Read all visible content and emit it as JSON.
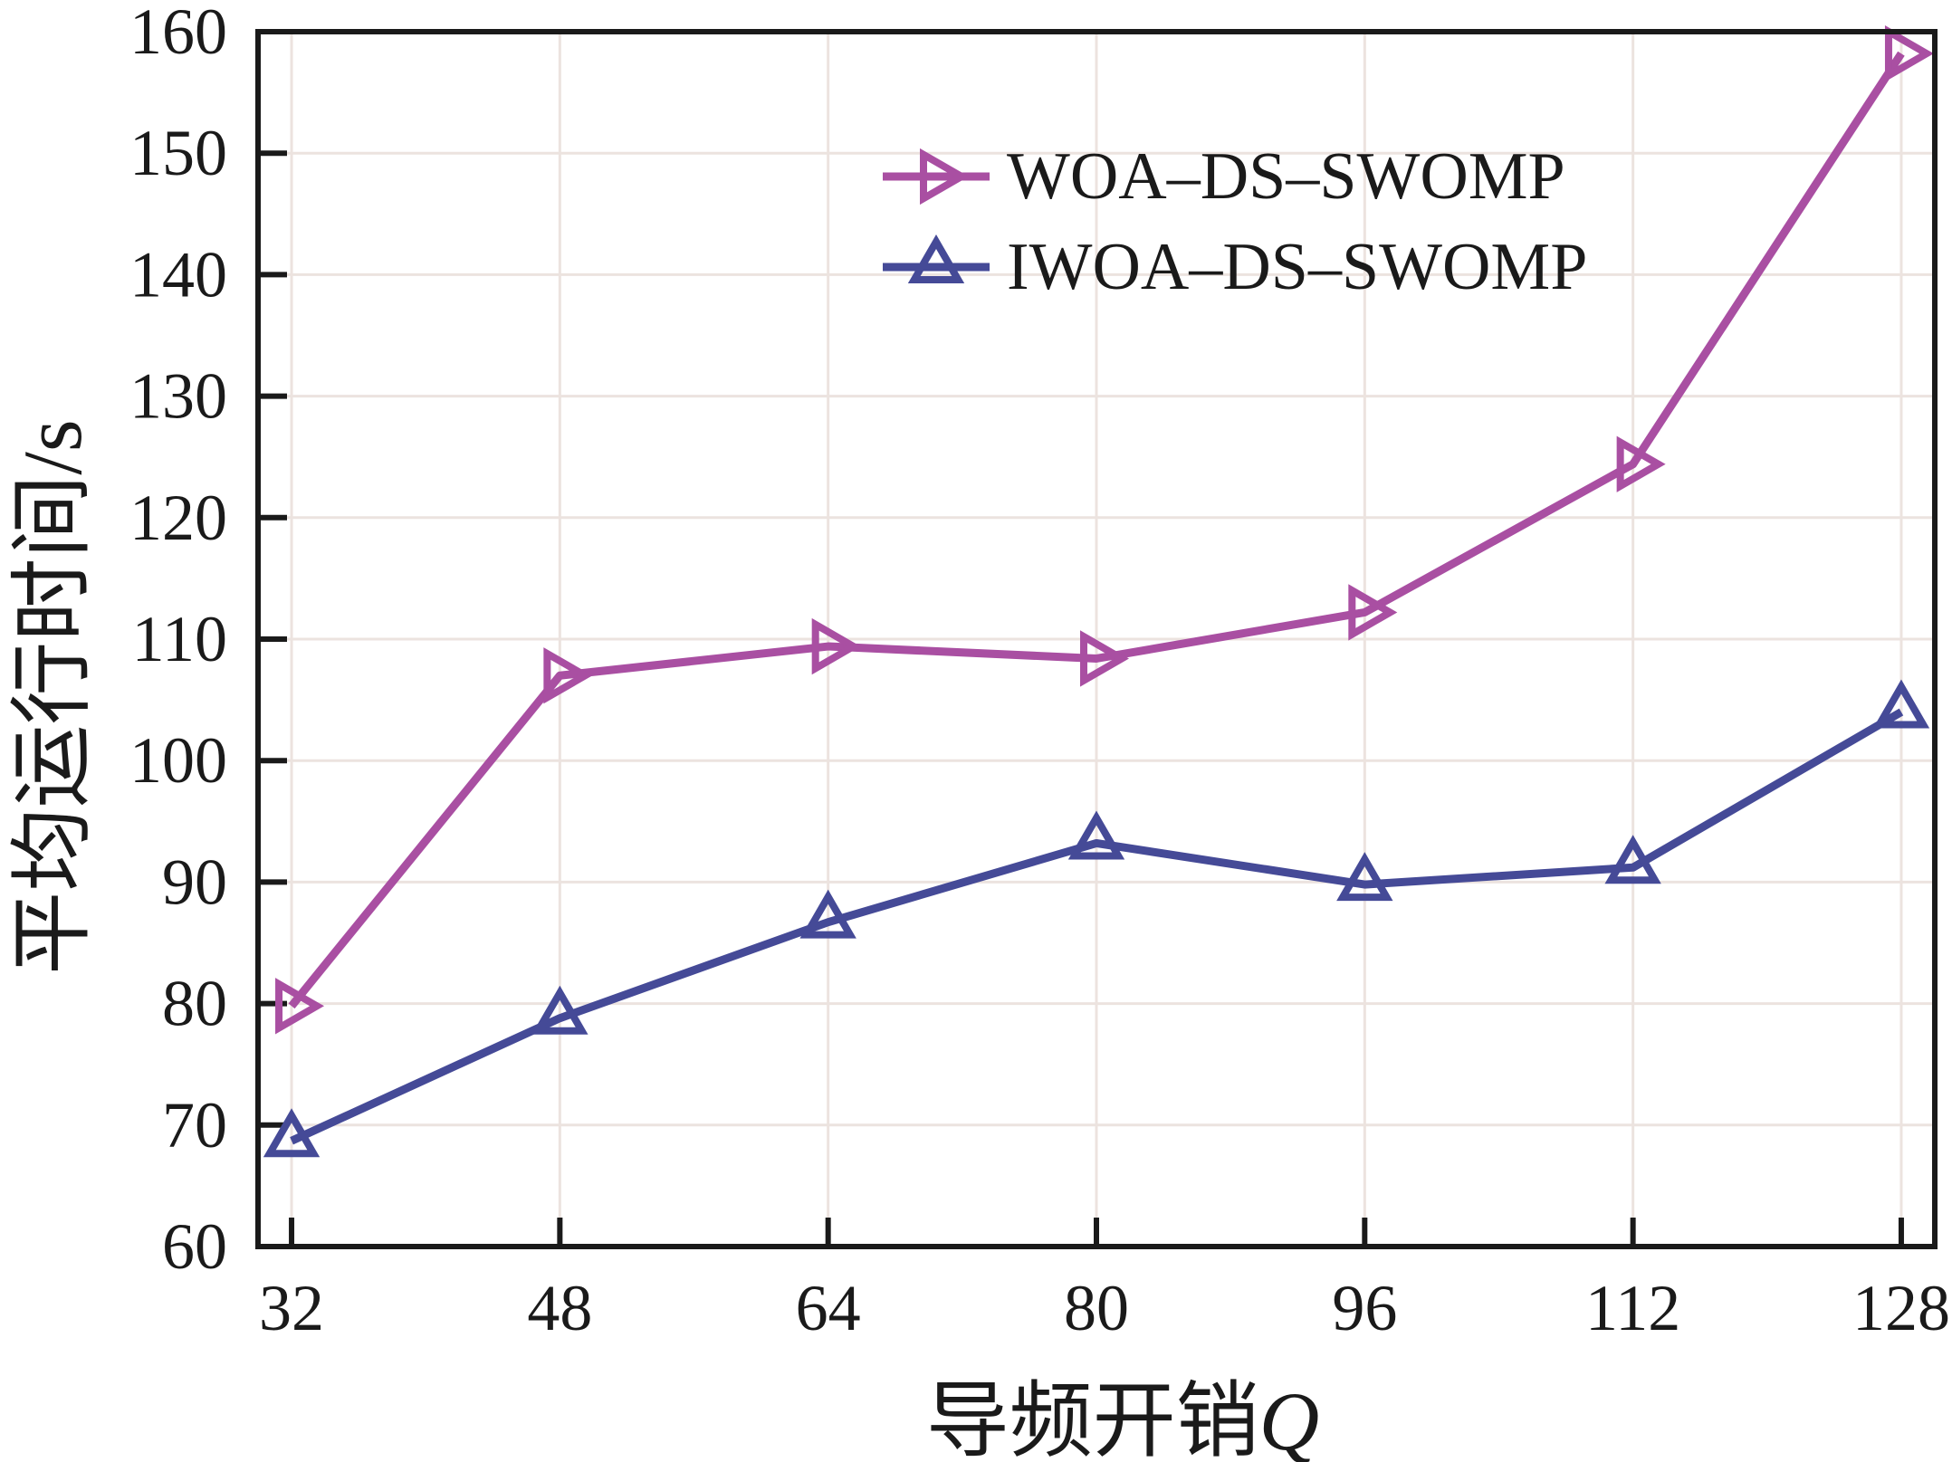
{
  "figure": {
    "background": "#ffffff"
  },
  "chart_data": {
    "type": "line",
    "title": "",
    "xlabel": "导频开销Q",
    "xlabel_main": "导频开销",
    "xlabel_italic": "Q",
    "ylabel": "平均运行时间/s",
    "x": [
      32,
      48,
      64,
      80,
      96,
      112,
      128
    ],
    "series": [
      {
        "name": "WOA–DS–SWOMP",
        "color": "#a94fa2",
        "marker": "triangle-right",
        "values": [
          79.8,
          107.0,
          109.4,
          108.4,
          112.2,
          124.4,
          158.2
        ]
      },
      {
        "name": "IWOA–DS–SWOMP",
        "color": "#454a97",
        "marker": "triangle-up",
        "values": [
          68.7,
          78.8,
          86.7,
          93.2,
          89.8,
          91.2,
          104.0
        ]
      }
    ],
    "xticks": [
      32,
      48,
      64,
      80,
      96,
      112,
      128
    ],
    "yticks": [
      60,
      70,
      80,
      90,
      100,
      110,
      120,
      130,
      140,
      150,
      160
    ],
    "xlim": [
      30,
      130
    ],
    "ylim": [
      60,
      160
    ],
    "grid": true,
    "legend_position": "upper-center-inside",
    "colors": {
      "axis": "#1a1a1a",
      "grid": "#ece3df",
      "text": "#1a1a1a"
    }
  }
}
